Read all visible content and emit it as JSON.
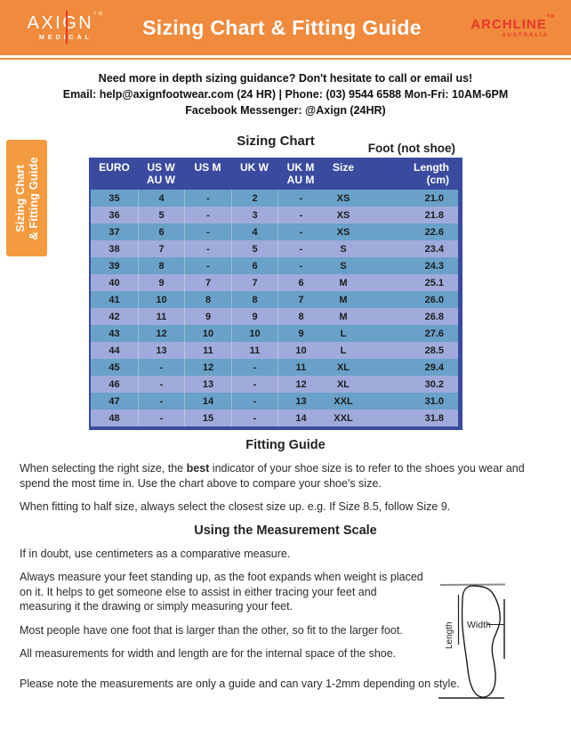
{
  "colors": {
    "accent_orange": "#F08A3C",
    "accent_red": "#E5372B",
    "table_header_blue": "#3A4B9F",
    "row_blue": "#69A1C9",
    "row_periwinkle": "#A0ABDB"
  },
  "header": {
    "title": "Sizing Chart & Fitting Guide",
    "axign_logo": {
      "name": "AXIGN",
      "tm": "TM",
      "sub": "MEDICAL"
    },
    "archline_logo": {
      "name": "ARCHLINE",
      "tm": "TM",
      "sub": "AUSTRALIA"
    }
  },
  "contact": {
    "line1": "Need more in depth sizing guidance? Don't hesitate to call or email us!",
    "line2": "Email: help@axignfootwear.com (24 HR) | Phone: (03) 9544 6588 Mon-Fri: 10AM-6PM",
    "line3": "Facebook Messenger: @Axign (24HR)"
  },
  "side_tab": {
    "line1": "Sizing Chart",
    "line2": "& Fitting Guide"
  },
  "sizing_chart": {
    "title": "Sizing Chart",
    "foot_label": "Foot (not shoe)",
    "table": {
      "columns": [
        "EURO",
        "US W\nAU W",
        "US M",
        "UK W",
        "UK M\nAU M",
        "Size",
        "Length\n(cm)"
      ],
      "rows": [
        [
          "35",
          "4",
          "-",
          "2",
          "-",
          "XS",
          "21.0"
        ],
        [
          "36",
          "5",
          "-",
          "3",
          "-",
          "XS",
          "21.8"
        ],
        [
          "37",
          "6",
          "-",
          "4",
          "-",
          "XS",
          "22.6"
        ],
        [
          "38",
          "7",
          "-",
          "5",
          "-",
          "S",
          "23.4"
        ],
        [
          "39",
          "8",
          "-",
          "6",
          "-",
          "S",
          "24.3"
        ],
        [
          "40",
          "9",
          "7",
          "7",
          "6",
          "M",
          "25.1"
        ],
        [
          "41",
          "10",
          "8",
          "8",
          "7",
          "M",
          "26.0"
        ],
        [
          "42",
          "11",
          "9",
          "9",
          "8",
          "M",
          "26.8"
        ],
        [
          "43",
          "12",
          "10",
          "10",
          "9",
          "L",
          "27.6"
        ],
        [
          "44",
          "13",
          "11",
          "11",
          "10",
          "L",
          "28.5"
        ],
        [
          "45",
          "-",
          "12",
          "-",
          "11",
          "XL",
          "29.4"
        ],
        [
          "46",
          "-",
          "13",
          "-",
          "12",
          "XL",
          "30.2"
        ],
        [
          "47",
          "-",
          "14",
          "-",
          "13",
          "XXL",
          "31.0"
        ],
        [
          "48",
          "-",
          "15",
          "-",
          "14",
          "XXL",
          "31.8"
        ]
      ]
    }
  },
  "fitting_guide": {
    "heading": "Fitting Guide",
    "p1_before": "When selecting the right size, the ",
    "p1_bold": "best",
    "p1_after": " indicator of your shoe size is to refer to the shoes you wear and spend the most time in. Use the chart above to compare your shoe's size.",
    "p2": "When fitting to half size, always select the closest size up. e.g. If Size 8.5, follow Size 9."
  },
  "measurement": {
    "heading": "Using the Measurement Scale",
    "p1": "If in doubt, use centimeters as a comparative measure.",
    "p2": "Always measure your feet standing up, as the foot expands when weight is placed on it. It helps to get someone else to assist in either tracing your feet and measuring it the drawing or simply measuring your feet.",
    "p3": "Most people have one foot that is larger than the other, so fit to the larger foot.",
    "p4": "All measurements for width and length are for the internal space of the shoe.",
    "p5": "Please note the measurements are only a guide and can vary 1-2mm depending on style.",
    "diagram": {
      "width_label": "Width",
      "length_label": "Length"
    }
  }
}
